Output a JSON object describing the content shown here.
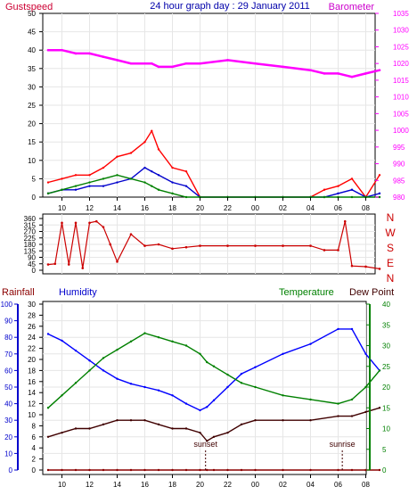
{
  "header": {
    "left_label": "Gustspeed",
    "title": "24 hour graph day : 29 January 2011",
    "right_label": "Barometer"
  },
  "legend2": {
    "rainfall": "Rainfall",
    "humidity": "Humidity",
    "temperature": "Temperature",
    "dewpoint": "Dew Point"
  },
  "colors": {
    "gust": "#ff0000",
    "gust_label": "#cc0033",
    "avg": "#0000cc",
    "low": "#008000",
    "baro": "#ff00ff",
    "direction": "#cc0000",
    "humidity": "#0000ff",
    "temperature": "#008000",
    "dewpoint": "#400000",
    "rain": "#8b0000",
    "axis_blue": "#0000cc",
    "axis_green": "#008000",
    "title": "#0000aa"
  },
  "chart_data": [
    {
      "type": "line",
      "name": "wind",
      "x_ticks": [
        "10",
        "12",
        "14",
        "16",
        "18",
        "20",
        "22",
        "00",
        "02",
        "04",
        "06",
        "08"
      ],
      "ylim_left": [
        0,
        50
      ],
      "left_ticks": [
        0,
        5,
        10,
        15,
        20,
        25,
        30,
        35,
        40,
        45,
        50
      ],
      "ylim_right": [
        980,
        1035
      ],
      "right_ticks": [
        980,
        985,
        990,
        995,
        1000,
        1005,
        1010,
        1015,
        1020,
        1025,
        1030,
        1035
      ],
      "x_hours": [
        9.0,
        10.0,
        11.0,
        12.0,
        13.0,
        14.0,
        15.0,
        16.0,
        16.5,
        17.0,
        18.0,
        19.0,
        20.0,
        22.0,
        24.0,
        26.0,
        28.0,
        29.0,
        30.0,
        31.0,
        32.0,
        33.0
      ],
      "series": [
        {
          "name": "Gustspeed",
          "values": [
            4,
            5,
            6,
            6,
            8,
            11,
            12,
            15,
            18,
            13,
            8,
            7,
            0,
            0,
            0,
            0,
            0,
            2,
            3,
            5,
            0,
            6
          ]
        },
        {
          "name": "",
          "values": [
            1,
            2,
            2,
            3,
            3,
            4,
            5,
            8,
            7,
            6,
            4,
            3,
            0,
            0,
            0,
            0,
            0,
            0,
            1,
            2,
            0,
            1
          ]
        },
        {
          "name": "",
          "values": [
            1,
            2,
            3,
            4,
            5,
            6,
            5,
            4,
            3,
            2,
            1,
            0,
            0,
            0,
            0,
            0,
            0,
            0,
            0,
            0,
            0,
            0
          ]
        },
        {
          "name": "Barometer",
          "values": [
            1024,
            1024,
            1023,
            1023,
            1022,
            1021,
            1020,
            1020,
            1020,
            1019,
            1019,
            1020,
            1020,
            1021,
            1020,
            1019,
            1018,
            1017,
            1017,
            1016,
            1017,
            1018
          ]
        }
      ]
    },
    {
      "type": "line",
      "name": "direction",
      "x_ticks": [
        "10",
        "12",
        "14",
        "16",
        "18",
        "20",
        "22",
        "00",
        "02",
        "04",
        "06",
        "08"
      ],
      "ylim": [
        0,
        360
      ],
      "ticks": [
        0,
        45,
        90,
        135,
        180,
        225,
        270,
        315,
        360
      ],
      "compass_labels": [
        "N",
        "W",
        "S",
        "E",
        "N"
      ],
      "x_hours": [
        9.0,
        9.5,
        10.0,
        10.5,
        11.0,
        11.5,
        12.0,
        12.5,
        13.0,
        13.5,
        14.0,
        15.0,
        16.0,
        17.0,
        18.0,
        19.0,
        20.0,
        22.0,
        24.0,
        26.0,
        28.0,
        29.0,
        30.0,
        30.5,
        31.0,
        32.0,
        33.0
      ],
      "series": [
        {
          "name": "",
          "values": [
            40,
            45,
            330,
            40,
            330,
            15,
            330,
            340,
            300,
            180,
            60,
            250,
            170,
            180,
            150,
            160,
            170,
            170,
            170,
            170,
            170,
            140,
            140,
            340,
            30,
            25,
            10
          ]
        }
      ]
    },
    {
      "type": "line",
      "name": "climate",
      "x_ticks": [
        "10",
        "12",
        "14",
        "16",
        "18",
        "20",
        "22",
        "00",
        "02",
        "04",
        "06",
        "08"
      ],
      "rainfall_axis": [
        0,
        10,
        20,
        30,
        40,
        50,
        60,
        70,
        80,
        90,
        100
      ],
      "humidity_axis": [
        0,
        2,
        4,
        6,
        8,
        10,
        12,
        14,
        16,
        18,
        20,
        22,
        24,
        26,
        28,
        30
      ],
      "temperature_axis": [
        0,
        5,
        10,
        15,
        20,
        25,
        30,
        35,
        40
      ],
      "x_hours": [
        9.0,
        10.0,
        11.0,
        12.0,
        13.0,
        14.0,
        15.0,
        16.0,
        17.0,
        18.0,
        19.0,
        20.0,
        20.5,
        21.0,
        22.0,
        23.0,
        24.0,
        26.0,
        28.0,
        30.0,
        31.0,
        32.0,
        33.0
      ],
      "series": [
        {
          "name": "Humidity",
          "values": [
            82,
            78,
            72,
            66,
            60,
            55,
            52,
            50,
            48,
            45,
            40,
            36,
            38,
            42,
            50,
            58,
            62,
            70,
            76,
            85,
            85,
            70,
            60
          ]
        },
        {
          "name": "Temperature",
          "values": [
            15,
            18,
            21,
            24,
            27,
            29,
            31,
            33,
            32,
            31,
            30,
            28,
            26,
            25,
            23,
            21,
            20,
            18,
            17,
            16,
            17,
            20,
            24
          ]
        },
        {
          "name": "Dew Point",
          "values": [
            8,
            9,
            10,
            10,
            11,
            12,
            12,
            12,
            11,
            10,
            10,
            9,
            7,
            8,
            9,
            11,
            12,
            12,
            12,
            13,
            13,
            14,
            15
          ]
        },
        {
          "name": "Rainfall",
          "values": [
            0,
            0,
            0,
            0,
            0,
            0,
            0,
            0,
            0,
            0,
            0,
            0,
            0,
            0,
            0,
            0,
            0,
            0,
            0,
            0,
            0,
            0,
            0
          ]
        }
      ],
      "annotations": [
        {
          "text": "sunset",
          "hour": 20.4
        },
        {
          "text": "sunrise",
          "hour": 30.3
        }
      ]
    }
  ]
}
